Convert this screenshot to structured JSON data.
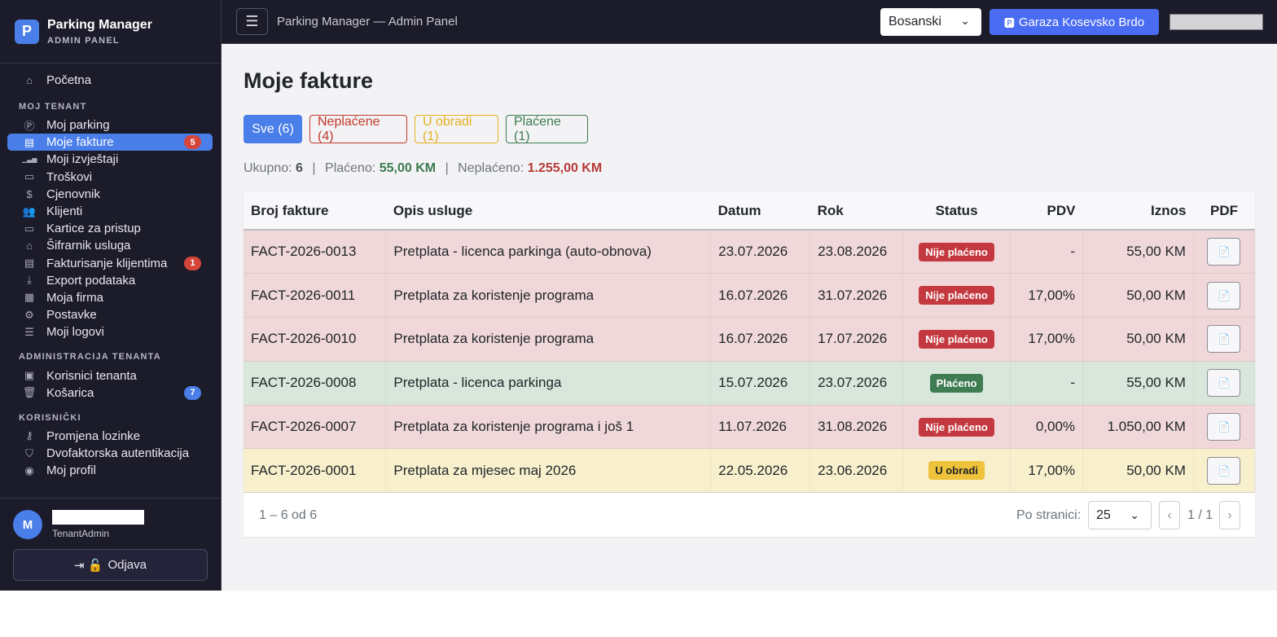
{
  "brand": {
    "logo_letter": "P",
    "title": "Parking Manager",
    "subtitle": "ADMIN PANEL"
  },
  "sidebar": {
    "home": {
      "label": "Početna",
      "icon": "home-icon"
    },
    "sections": [
      {
        "title": "MOJ TENANT",
        "items": [
          {
            "label": "Moj parking",
            "icon": "parking-icon",
            "badge": ""
          },
          {
            "label": "Moje fakture",
            "icon": "invoice-icon",
            "badge": "5",
            "active": true
          },
          {
            "label": "Moji izvještaji",
            "icon": "chart-icon",
            "badge": ""
          },
          {
            "label": "Troškovi",
            "icon": "cash-icon",
            "badge": ""
          },
          {
            "label": "Cjenovnik",
            "icon": "price-icon",
            "badge": ""
          },
          {
            "label": "Klijenti",
            "icon": "users-icon",
            "badge": ""
          },
          {
            "label": "Kartice za pristup",
            "icon": "card-icon",
            "badge": ""
          },
          {
            "label": "Šifrarnik usluga",
            "icon": "tag-icon",
            "badge": ""
          },
          {
            "label": "Fakturisanje klijentima",
            "icon": "billing-icon",
            "badge": "1"
          },
          {
            "label": "Export podataka",
            "icon": "download-icon",
            "badge": ""
          },
          {
            "label": "Moja firma",
            "icon": "building-icon",
            "badge": ""
          },
          {
            "label": "Postavke",
            "icon": "gear-icon",
            "badge": ""
          },
          {
            "label": "Moji logovi",
            "icon": "log-icon",
            "badge": ""
          }
        ]
      },
      {
        "title": "ADMINISTRACIJA TENANTA",
        "items": [
          {
            "label": "Korisnici tenanta",
            "icon": "id-badge-icon",
            "badge": ""
          },
          {
            "label": "Košarica",
            "icon": "trash-icon",
            "badge": "7"
          }
        ]
      },
      {
        "title": "KORISNIČKI",
        "items": [
          {
            "label": "Promjena lozinke",
            "icon": "key-icon",
            "badge": ""
          },
          {
            "label": "Dvofaktorska autentikacija",
            "icon": "shield-icon",
            "badge": ""
          },
          {
            "label": "Moj profil",
            "icon": "profile-icon",
            "badge": ""
          }
        ]
      }
    ],
    "user": {
      "avatar_letter": "M",
      "name": "",
      "role": "TenantAdmin"
    },
    "logout_label": "Odjava"
  },
  "topbar": {
    "title": "Parking Manager — Admin Panel",
    "language": "Bosanski",
    "garage": "Garaza Kosevsko Brdo"
  },
  "main": {
    "title": "Moje fakture",
    "filters": {
      "all": "Sve (6)",
      "unpaid": "Neplaćene (4)",
      "processing": "U obradi (1)",
      "paid": "Plaćene (1)"
    },
    "summary": {
      "total_label": "Ukupno:",
      "total": "6",
      "paid_label": "Plaćeno:",
      "paid": "55,00 KM",
      "unpaid_label": "Neplaćeno:",
      "unpaid": "1.255,00 KM"
    },
    "columns": [
      "Broj fakture",
      "Opis usluge",
      "Datum",
      "Rok",
      "Status",
      "PDV",
      "Iznos",
      "PDF"
    ],
    "rows": [
      {
        "number": "FACT-2026-0013",
        "desc": "Pretplata - licenca parkinga (auto-obnova)",
        "date": "23.07.2026",
        "due": "23.08.2026",
        "status": "Nije plaćeno",
        "status_type": "unpaid",
        "vat": "-",
        "amount": "55,00 KM"
      },
      {
        "number": "FACT-2026-0011",
        "desc": "Pretplata za koristenje programa",
        "date": "16.07.2026",
        "due": "31.07.2026",
        "status": "Nije plaćeno",
        "status_type": "unpaid",
        "vat": "17,00%",
        "amount": "50,00 KM"
      },
      {
        "number": "FACT-2026-0010",
        "desc": "Pretplata za koristenje programa",
        "date": "16.07.2026",
        "due": "17.07.2026",
        "status": "Nije plaćeno",
        "status_type": "unpaid",
        "vat": "17,00%",
        "amount": "50,00 KM"
      },
      {
        "number": "FACT-2026-0008",
        "desc": "Pretplata - licenca parkinga",
        "date": "15.07.2026",
        "due": "23.07.2026",
        "status": "Plaćeno",
        "status_type": "paid",
        "vat": "-",
        "amount": "55,00 KM"
      },
      {
        "number": "FACT-2026-0007",
        "desc": "Pretplata za koristenje programa i još 1",
        "date": "11.07.2026",
        "due": "31.08.2026",
        "status": "Nije plaćeno",
        "status_type": "unpaid",
        "vat": "0,00%",
        "amount": "1.050,00 KM"
      },
      {
        "number": "FACT-2026-0001",
        "desc": "Pretplata za mjesec maj 2026",
        "date": "22.05.2026",
        "due": "23.06.2026",
        "status": "U obradi",
        "status_type": "proc",
        "vat": "17,00%",
        "amount": "50,00 KM"
      }
    ],
    "pager": {
      "range": "1 – 6 od 6",
      "per_page_label": "Po stranici:",
      "per_page": "25",
      "page_info": "1 / 1",
      "prev": "‹",
      "next": "›"
    }
  }
}
